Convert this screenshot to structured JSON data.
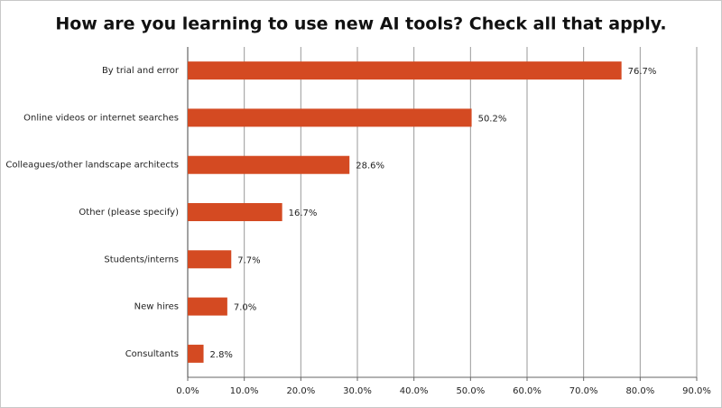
{
  "chart_data": {
    "type": "bar",
    "orientation": "horizontal",
    "title": "How are you learning to use new AI tools? Check all that apply.",
    "categories": [
      "By trial and error",
      "Online videos or internet searches",
      "Colleagues/other landscape architects",
      "Other (please specify)",
      "Students/interns",
      "New hires",
      "Consultants"
    ],
    "values": [
      76.7,
      50.2,
      28.6,
      16.7,
      7.7,
      7.0,
      2.8
    ],
    "value_labels": [
      "76.7%",
      "50.2%",
      "28.6%",
      "16.7%",
      "7.7%",
      "7.0%",
      "2.8%"
    ],
    "color": "#d44a22",
    "xlim": [
      0,
      90
    ],
    "xticks": [
      {
        "value": 0,
        "label": "0.0%"
      },
      {
        "value": 10,
        "label": "10.0%"
      },
      {
        "value": 20,
        "label": "20.0%"
      },
      {
        "value": 30,
        "label": "30.0%"
      },
      {
        "value": 40,
        "label": "40.0%"
      },
      {
        "value": 50,
        "label": "50.0%"
      },
      {
        "value": 60,
        "label": "60.0%"
      },
      {
        "value": 70,
        "label": "70.0%"
      },
      {
        "value": 80,
        "label": "80.0%"
      },
      {
        "value": 90,
        "label": "90.0%"
      }
    ],
    "grid": true
  }
}
